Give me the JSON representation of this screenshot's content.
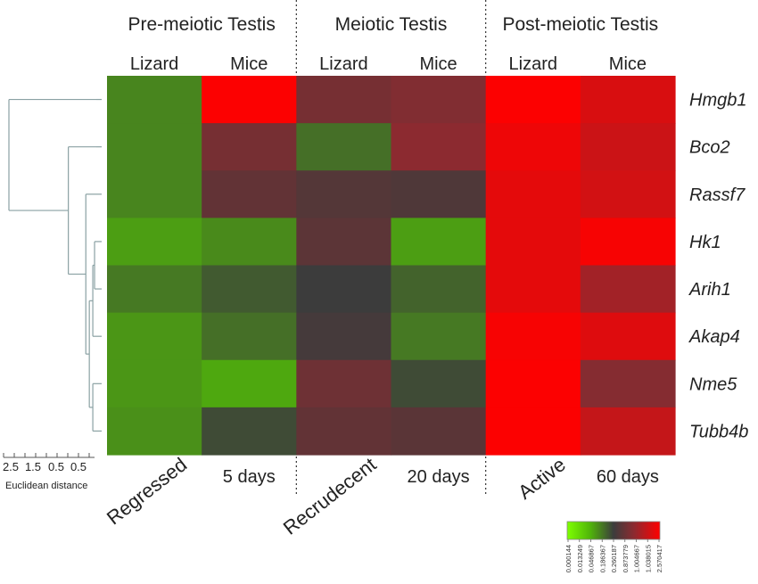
{
  "chart_data": {
    "type": "heatmap",
    "title": "",
    "group_headers": [
      "Pre-meiotic Testis",
      "Meiotic Testis",
      "Post-meiotic Testis"
    ],
    "column_species": [
      "Lizard",
      "Mice",
      "Lizard",
      "Mice",
      "Lizard",
      "Mice"
    ],
    "column_stages": [
      "Regressed",
      "5 days",
      "Recrudecent",
      "20 days",
      "Active",
      "60 days"
    ],
    "rows": [
      "Hmgb1",
      "Bco2",
      "Rassf7",
      "Hk1",
      "Arih1",
      "Akap4",
      "Nme5",
      "Tubb4b"
    ],
    "values": [
      [
        0.009,
        2.5,
        0.4,
        0.6,
        2.5,
        1.8
      ],
      [
        0.009,
        0.4,
        0.015,
        0.9,
        2.2,
        1.6
      ],
      [
        0.009,
        0.2,
        0.12,
        0.1,
        2.0,
        1.7
      ],
      [
        0.005,
        0.008,
        0.16,
        0.005,
        2.0,
        2.4
      ],
      [
        0.012,
        0.025,
        0.05,
        0.02,
        2.0,
        1.1
      ],
      [
        0.006,
        0.015,
        0.07,
        0.012,
        2.4,
        1.9
      ],
      [
        0.006,
        0.004,
        0.3,
        0.035,
        2.5,
        0.7
      ],
      [
        0.007,
        0.035,
        0.2,
        0.15,
        2.5,
        1.5
      ]
    ],
    "colorbar": {
      "ticks": [
        "0.000144",
        "0.013249",
        "0.046867",
        "0.186367",
        "0.260187",
        "0.873779",
        "1.004667",
        "1.038015",
        "2.570417"
      ],
      "colors": [
        "#7dff00",
        "#50b40a",
        "#3c3c3c",
        "#8c2a30",
        "#ff0000"
      ]
    },
    "dendrogram": {
      "xlabel": "Euclidean distance",
      "ticks": [
        "2.5",
        "1.5",
        "0.5",
        "0.5"
      ],
      "merges": [
        [
          3,
          4,
          0.05
        ],
        [
          6,
          7,
          0.1
        ],
        [
          5,
          101,
          0.1
        ],
        [
          102,
          103,
          0.2
        ],
        [
          2,
          104,
          0.3
        ],
        [
          1,
          105,
          0.8
        ],
        [
          0,
          106,
          2.5
        ]
      ]
    }
  },
  "colors": {
    "dendrogram_line": "#8aa1a3",
    "divider": "#333333",
    "text": "#222222"
  }
}
